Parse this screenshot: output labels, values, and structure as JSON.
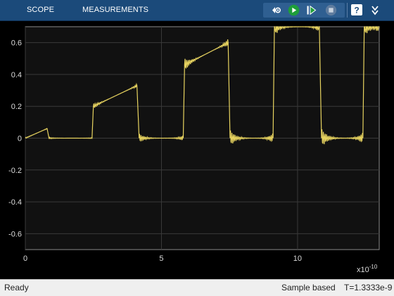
{
  "toolstrip": {
    "tabs": [
      {
        "label": "SCOPE"
      },
      {
        "label": "MEASUREMENTS"
      }
    ],
    "icons": [
      "signal-selector-icon",
      "run-icon",
      "step-forward-icon",
      "stop-icon",
      "help-icon",
      "expand-icon"
    ],
    "colors": {
      "background": "#1b4a7a",
      "run": "#1e9e3a",
      "step": "#1e9e3a"
    }
  },
  "status": {
    "left": "Ready",
    "mode": "Sample based",
    "time": "T=1.3333e-9"
  },
  "chart_data": {
    "type": "line",
    "x_unit_multiplier_label": "x10",
    "x_unit_exponent": "-10",
    "xlim": [
      0,
      13
    ],
    "ylim": [
      -0.7,
      0.7
    ],
    "x_ticks": [
      "0",
      "5",
      "10"
    ],
    "y_ticks": [
      "0.6",
      "0.4",
      "0.2",
      "0",
      "-0.2",
      "-0.4",
      "-0.6"
    ],
    "grid": true,
    "line_color": "#e8d460",
    "background": "#111111",
    "series": [
      {
        "points": [
          [
            0,
            0
          ],
          [
            0.8,
            0.06
          ],
          [
            0.87,
            0
          ],
          [
            2.45,
            0
          ],
          [
            2.5,
            0.2
          ],
          [
            4.1,
            0.33
          ],
          [
            4.18,
            0
          ],
          [
            5.8,
            0
          ],
          [
            5.85,
            0.46
          ],
          [
            7.45,
            0.6
          ],
          [
            7.52,
            0
          ],
          [
            9.1,
            0
          ],
          [
            9.15,
            0.7
          ],
          [
            10.8,
            0.7
          ],
          [
            10.88,
            0
          ],
          [
            12.4,
            0
          ],
          [
            12.45,
            0.7
          ],
          [
            13,
            0.7
          ]
        ]
      }
    ]
  }
}
